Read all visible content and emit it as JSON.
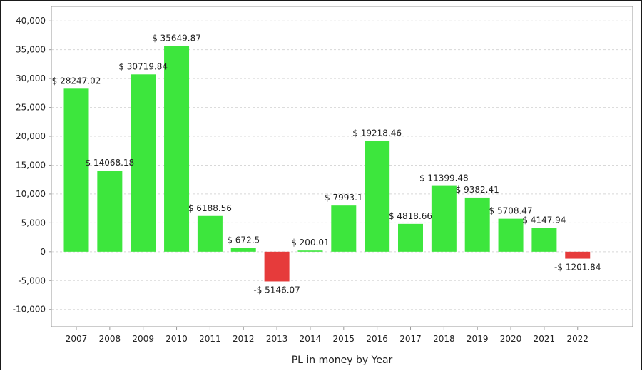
{
  "chart_data": {
    "type": "bar",
    "title": "",
    "xlabel": "PL in money by Year",
    "ylabel": "",
    "categories": [
      "2007",
      "2008",
      "2009",
      "2010",
      "2011",
      "2012",
      "2013",
      "2014",
      "2015",
      "2016",
      "2017",
      "2018",
      "2019",
      "2020",
      "2021",
      "2022"
    ],
    "values": [
      28247.02,
      14068.18,
      30719.84,
      35649.87,
      6188.56,
      672.5,
      -5146.07,
      200.01,
      7993.1,
      19218.46,
      4818.66,
      11399.48,
      9382.41,
      5708.47,
      4147.94,
      -1201.84
    ],
    "data_labels": [
      "$ 28247.02",
      "$ 14068.18",
      "$ 30719.84",
      "$ 35649.87",
      "$ 6188.56",
      "$ 672.5",
      "-$ 5146.07",
      "$ 200.01",
      "$ 7993.1",
      "$ 19218.46",
      "$ 4818.66",
      "$ 11399.48",
      "$ 9382.41",
      "$ 5708.47",
      "$ 4147.94",
      "-$ 1201.84"
    ],
    "ylim": [
      -13000,
      42500
    ],
    "yticks": [
      -10000,
      -5000,
      0,
      5000,
      10000,
      15000,
      20000,
      25000,
      30000,
      35000,
      40000
    ],
    "ytick_labels": [
      "-10,000",
      "-5,000",
      "0",
      "5,000",
      "10,000",
      "15,000",
      "20,000",
      "25,000",
      "30,000",
      "35,000",
      "40,000"
    ],
    "grid": true,
    "legend": "none",
    "colors": {
      "positive": "#3de63d",
      "negative": "#e63b3b",
      "grid": "#d8d8d8",
      "axis": "#999999"
    }
  }
}
